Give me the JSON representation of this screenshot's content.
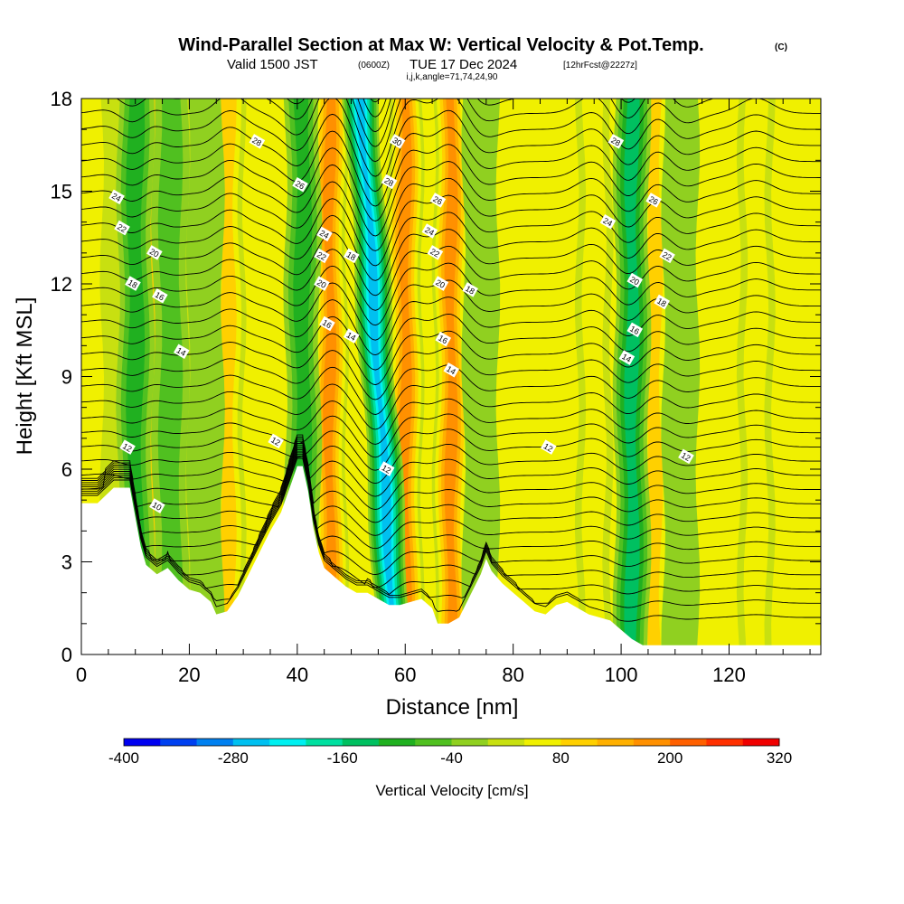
{
  "header": {
    "title": "Wind-Parallel Section at Max W: Vertical Velocity & Pot.Temp.",
    "copyright": "(C)",
    "valid_prefix": "Valid 1500 JST",
    "valid_utc": "(0600Z)",
    "valid_date": "TUE 17 Dec 2024",
    "forecast": "[12hrFcst@2227z]",
    "indices": "i,j,k,angle=71,74,24,90"
  },
  "chart_data": {
    "type": "heatmap",
    "title": "Wind-Parallel Section at Max W: Vertical Velocity & Pot.Temp.",
    "xlabel": "Distance [nm]",
    "ylabel": "Height [Kft MSL]",
    "xlim": [
      0,
      137
    ],
    "ylim": [
      0,
      18
    ],
    "x_ticks": [
      0,
      20,
      40,
      60,
      80,
      100,
      120
    ],
    "y_ticks": [
      0,
      3,
      6,
      9,
      12,
      15,
      18
    ],
    "colorbar": {
      "label": "Vertical Velocity [cm/s]",
      "range": [
        -400,
        320
      ],
      "step": 40,
      "tick_values": [
        -400,
        -280,
        -160,
        -40,
        80,
        200,
        320
      ],
      "tick_labels": [
        "-400",
        "-280",
        "-160",
        "-40",
        "80",
        "200",
        "320"
      ],
      "colors": [
        "#0000f0",
        "#0040f0",
        "#0080f0",
        "#00c0f0",
        "#00f0f0",
        "#00e0a0",
        "#00c060",
        "#20b020",
        "#50c020",
        "#90d020",
        "#c8e010",
        "#f0f000",
        "#ffd000",
        "#ffb000",
        "#ff9000",
        "#ff6000",
        "#ff3000",
        "#f00000",
        "#c00030",
        "#a00050",
        "#800070",
        "#600080"
      ]
    },
    "terrain_nm_kft": [
      [
        0,
        4.9
      ],
      [
        3,
        4.9
      ],
      [
        6,
        5.4
      ],
      [
        9,
        5.4
      ],
      [
        11,
        3.5
      ],
      [
        12,
        2.9
      ],
      [
        14,
        2.6
      ],
      [
        16,
        2.8
      ],
      [
        18,
        2.4
      ],
      [
        20,
        2.1
      ],
      [
        22,
        2.0
      ],
      [
        24,
        1.7
      ],
      [
        25,
        1.3
      ],
      [
        27,
        1.4
      ],
      [
        29,
        1.9
      ],
      [
        31,
        2.6
      ],
      [
        33,
        3.3
      ],
      [
        35,
        4.0
      ],
      [
        37,
        4.6
      ],
      [
        39,
        5.6
      ],
      [
        40,
        6.1
      ],
      [
        41,
        6.1
      ],
      [
        42,
        5.3
      ],
      [
        43,
        4.1
      ],
      [
        44,
        3.3
      ],
      [
        45,
        2.8
      ],
      [
        47,
        2.5
      ],
      [
        49,
        2.2
      ],
      [
        51,
        2.0
      ],
      [
        53,
        2.0
      ],
      [
        55,
        1.8
      ],
      [
        57,
        1.6
      ],
      [
        59,
        1.6
      ],
      [
        61,
        1.7
      ],
      [
        63,
        1.8
      ],
      [
        65,
        1.5
      ],
      [
        66,
        1.0
      ],
      [
        68,
        1.0
      ],
      [
        70,
        1.2
      ],
      [
        72,
        1.9
      ],
      [
        74,
        2.6
      ],
      [
        75,
        3.1
      ],
      [
        76,
        2.7
      ],
      [
        78,
        2.3
      ],
      [
        80,
        2.0
      ],
      [
        82,
        1.7
      ],
      [
        84,
        1.4
      ],
      [
        86,
        1.3
      ],
      [
        88,
        1.6
      ],
      [
        90,
        1.7
      ],
      [
        92,
        1.5
      ],
      [
        94,
        1.3
      ],
      [
        96,
        1.2
      ],
      [
        98,
        1.1
      ],
      [
        100,
        0.8
      ],
      [
        102,
        0.5
      ],
      [
        104,
        0.3
      ],
      [
        137,
        0.3
      ]
    ],
    "updrafts_nm": [
      {
        "x": 7,
        "w": 60
      },
      {
        "x": 13,
        "w": 130
      },
      {
        "x": 20,
        "w": 60
      },
      {
        "x": 27,
        "w": 120
      },
      {
        "x": 46,
        "w": 210
      },
      {
        "x": 60,
        "w": 200
      },
      {
        "x": 68.5,
        "w": 200
      },
      {
        "x": 95,
        "w": 100
      },
      {
        "x": 106,
        "w": 130
      },
      {
        "x": 125,
        "w": 80
      }
    ],
    "downdrafts_nm": [
      {
        "x": 10,
        "w": -150
      },
      {
        "x": 16.5,
        "w": -80
      },
      {
        "x": 23,
        "w": -60
      },
      {
        "x": 41,
        "w": -150
      },
      {
        "x": 55,
        "w": -300
      },
      {
        "x": 74,
        "w": -60
      },
      {
        "x": 102,
        "w": -160
      },
      {
        "x": 111,
        "w": -70
      }
    ],
    "isentrope_labels": [
      {
        "x": 8.5,
        "y": 6.7,
        "t": "12"
      },
      {
        "x": 14,
        "y": 4.8,
        "t": "10"
      },
      {
        "x": 18.5,
        "y": 9.8,
        "t": "14"
      },
      {
        "x": 14.5,
        "y": 11.6,
        "t": "16"
      },
      {
        "x": 9.5,
        "y": 12.0,
        "t": "18"
      },
      {
        "x": 13.5,
        "y": 13.0,
        "t": "20"
      },
      {
        "x": 7.5,
        "y": 13.8,
        "t": "22"
      },
      {
        "x": 6.5,
        "y": 14.8,
        "t": "24"
      },
      {
        "x": 32.5,
        "y": 16.6,
        "t": "28"
      },
      {
        "x": 36,
        "y": 6.9,
        "t": "12"
      },
      {
        "x": 40.5,
        "y": 15.2,
        "t": "26"
      },
      {
        "x": 45,
        "y": 13.6,
        "t": "24"
      },
      {
        "x": 44.5,
        "y": 12.9,
        "t": "22"
      },
      {
        "x": 50,
        "y": 12.9,
        "t": "18"
      },
      {
        "x": 44.5,
        "y": 12.0,
        "t": "20"
      },
      {
        "x": 45.5,
        "y": 10.7,
        "t": "16"
      },
      {
        "x": 50,
        "y": 10.3,
        "t": "14"
      },
      {
        "x": 56.5,
        "y": 6.0,
        "t": "12"
      },
      {
        "x": 58.5,
        "y": 16.6,
        "t": "30"
      },
      {
        "x": 57,
        "y": 15.3,
        "t": "28"
      },
      {
        "x": 66,
        "y": 14.7,
        "t": "26"
      },
      {
        "x": 64.5,
        "y": 13.7,
        "t": "24"
      },
      {
        "x": 65.5,
        "y": 13.0,
        "t": "22"
      },
      {
        "x": 66.5,
        "y": 12.0,
        "t": "20"
      },
      {
        "x": 72,
        "y": 11.8,
        "t": "18"
      },
      {
        "x": 67,
        "y": 10.2,
        "t": "16"
      },
      {
        "x": 68.5,
        "y": 9.2,
        "t": "14"
      },
      {
        "x": 86.5,
        "y": 6.7,
        "t": "12"
      },
      {
        "x": 99,
        "y": 16.6,
        "t": "28"
      },
      {
        "x": 97.5,
        "y": 14.0,
        "t": "24"
      },
      {
        "x": 106,
        "y": 14.7,
        "t": "26"
      },
      {
        "x": 108.5,
        "y": 12.9,
        "t": "22"
      },
      {
        "x": 102.5,
        "y": 12.1,
        "t": "20"
      },
      {
        "x": 107.5,
        "y": 11.4,
        "t": "18"
      },
      {
        "x": 102.5,
        "y": 10.5,
        "t": "16"
      },
      {
        "x": 101,
        "y": 9.6,
        "t": "14"
      },
      {
        "x": 112,
        "y": 6.4,
        "t": "12"
      }
    ]
  },
  "colors": {
    "background_field": "#f0f000",
    "contour": "#000000",
    "terrain": "#ffffff"
  }
}
